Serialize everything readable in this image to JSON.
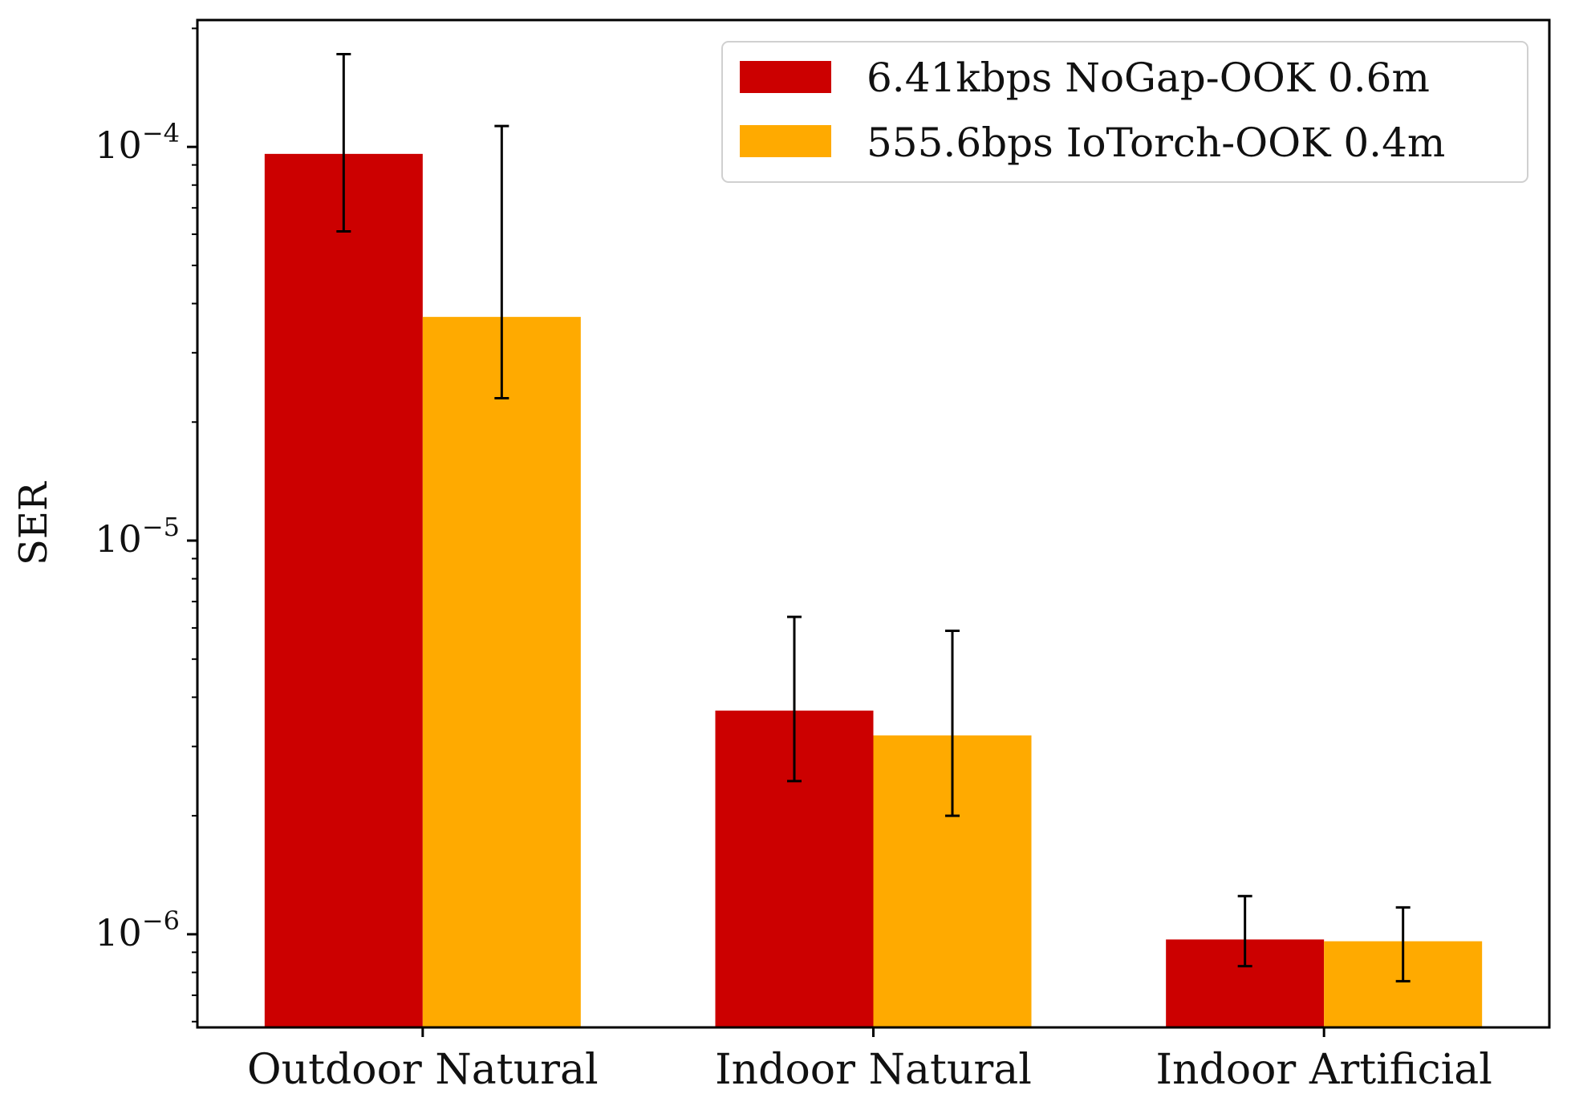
{
  "chart_data": {
    "type": "bar",
    "title": "",
    "xlabel": "",
    "ylabel": "SER",
    "yscale": "log",
    "ylim": [
      5.8e-07,
      0.00021
    ],
    "grid": false,
    "legend_position": "top-right",
    "categories": [
      "Outdoor Natural",
      "Indoor Natural",
      "Indoor Artificial"
    ],
    "yticks": [
      {
        "value": 0.0001,
        "base": "10",
        "exp": "−4"
      },
      {
        "value": 1e-05,
        "base": "10",
        "exp": "−5"
      },
      {
        "value": 1e-06,
        "base": "10",
        "exp": "−6"
      }
    ],
    "series": [
      {
        "name": "6.41kbps NoGap-OOK 0.6m",
        "color": "#cc0000",
        "values": [
          9.6e-05,
          3.7e-06,
          9.7e-07
        ],
        "err_low": [
          6.1e-05,
          2.45e-06,
          8.3e-07
        ],
        "err_high": [
          0.000172,
          6.4e-06,
          1.25e-06
        ]
      },
      {
        "name": "555.6bps IoTorch-OOK 0.4m",
        "color": "#ffaa00",
        "values": [
          3.7e-05,
          3.2e-06,
          9.6e-07
        ],
        "err_low": [
          2.3e-05,
          2e-06,
          7.6e-07
        ],
        "err_high": [
          0.000113,
          5.9e-06,
          1.17e-06
        ]
      }
    ]
  }
}
